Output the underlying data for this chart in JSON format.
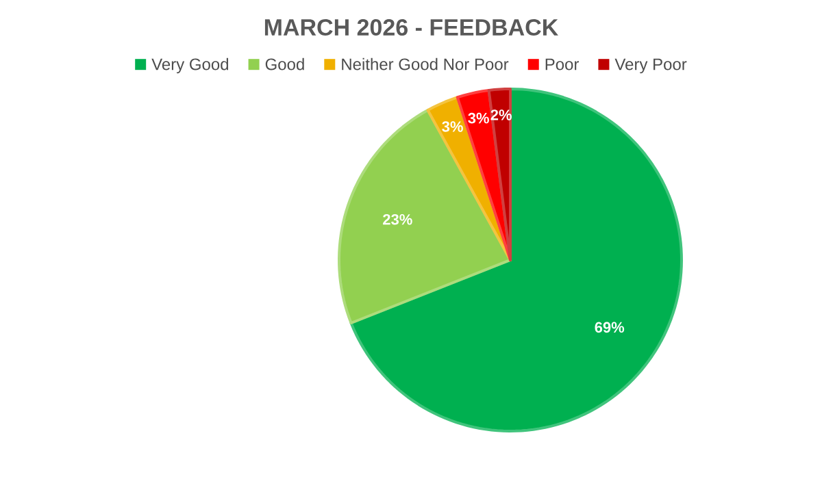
{
  "chart_data": {
    "type": "pie",
    "title": "MARCH 2026 - FEEDBACK",
    "categories": [
      "Very Good",
      "Good",
      "Neither Good Nor Poor",
      "Poor",
      "Very Poor"
    ],
    "values": [
      69,
      23,
      3,
      3,
      2
    ],
    "colors": [
      "#00b050",
      "#92d050",
      "#f0b000",
      "#ff0000",
      "#c00000"
    ],
    "value_labels": [
      "69%",
      "23%",
      "3%",
      "3%",
      "2%"
    ],
    "legend": "top"
  }
}
